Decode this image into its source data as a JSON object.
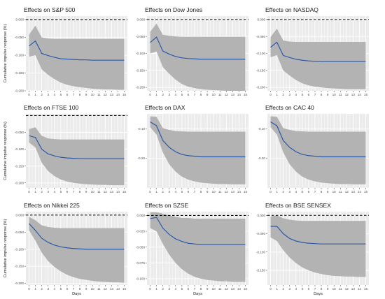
{
  "chart_data": [
    {
      "type": "line",
      "title": "Effects on S&P 500",
      "ylabel": "Cumulative impulse response (%)",
      "xlabel": "",
      "x": [
        0,
        1,
        2,
        3,
        4,
        5,
        6,
        7,
        8,
        9,
        10,
        11,
        12,
        13,
        14,
        15
      ],
      "ylim": [
        -0.2,
        0.01
      ],
      "yticks": [
        0.0,
        -0.05,
        -0.1,
        -0.15,
        -0.2
      ],
      "ytick_labels": [
        "0.000",
        "-0.050",
        "-0.100",
        "-0.150",
        "-0.200"
      ],
      "series": [
        {
          "values": [
            -0.074,
            -0.06,
            -0.095,
            -0.101,
            -0.106,
            -0.11,
            -0.111,
            -0.112,
            -0.113,
            -0.113,
            -0.114,
            -0.114,
            -0.114,
            -0.114,
            -0.114,
            -0.114
          ],
          "lower": [
            -0.104,
            -0.1,
            -0.14,
            -0.155,
            -0.167,
            -0.177,
            -0.183,
            -0.187,
            -0.19,
            -0.192,
            -0.194,
            -0.195,
            -0.196,
            -0.196,
            -0.197,
            -0.197
          ],
          "upper": [
            -0.042,
            -0.017,
            -0.05,
            -0.053,
            -0.054,
            -0.054,
            -0.054,
            -0.054,
            -0.054,
            -0.054,
            -0.054,
            -0.054,
            -0.054,
            -0.054,
            -0.054,
            -0.054
          ]
        }
      ]
    },
    {
      "type": "line",
      "title": "Effects on Dow Jones",
      "ylabel": "",
      "xlabel": "",
      "x": [
        0,
        1,
        2,
        3,
        4,
        5,
        6,
        7,
        8,
        9,
        10,
        11,
        12,
        13,
        14,
        15
      ],
      "ylim": [
        -0.21,
        0.01
      ],
      "yticks": [
        0.0,
        -0.05,
        -0.1,
        -0.15,
        -0.2
      ],
      "ytick_labels": [
        "0.000",
        "-0.050",
        "-0.100",
        "-0.150",
        "-0.200"
      ],
      "series": [
        {
          "values": [
            -0.068,
            -0.052,
            -0.093,
            -0.102,
            -0.109,
            -0.113,
            -0.115,
            -0.116,
            -0.117,
            -0.117,
            -0.117,
            -0.117,
            -0.117,
            -0.117,
            -0.117,
            -0.117
          ],
          "lower": [
            -0.1,
            -0.094,
            -0.14,
            -0.16,
            -0.177,
            -0.19,
            -0.198,
            -0.202,
            -0.205,
            -0.207,
            -0.208,
            -0.209,
            -0.21,
            -0.21,
            -0.21,
            -0.21
          ],
          "upper": [
            -0.036,
            -0.012,
            -0.045,
            -0.048,
            -0.05,
            -0.051,
            -0.051,
            -0.051,
            -0.051,
            -0.051,
            -0.051,
            -0.051,
            -0.051,
            -0.051,
            -0.051,
            -0.051
          ]
        }
      ]
    },
    {
      "type": "line",
      "title": "Effects on NASDAQ",
      "ylabel": "",
      "xlabel": "",
      "x": [
        0,
        1,
        2,
        3,
        4,
        5,
        6,
        7,
        8,
        9,
        10,
        11,
        12,
        13,
        14,
        15
      ],
      "ylim": [
        -0.21,
        0.01
      ],
      "yticks": [
        0.0,
        -0.05,
        -0.1,
        -0.15,
        -0.2
      ],
      "ytick_labels": [
        "0.000",
        "-0.050",
        "-0.100",
        "-0.150",
        "-0.200"
      ],
      "series": [
        {
          "values": [
            -0.082,
            -0.067,
            -0.106,
            -0.112,
            -0.117,
            -0.12,
            -0.122,
            -0.123,
            -0.124,
            -0.124,
            -0.124,
            -0.124,
            -0.124,
            -0.124,
            -0.124,
            -0.124
          ],
          "lower": [
            -0.111,
            -0.105,
            -0.15,
            -0.165,
            -0.178,
            -0.188,
            -0.194,
            -0.198,
            -0.2,
            -0.202,
            -0.203,
            -0.204,
            -0.205,
            -0.205,
            -0.205,
            -0.205
          ],
          "upper": [
            -0.052,
            -0.027,
            -0.062,
            -0.065,
            -0.066,
            -0.066,
            -0.066,
            -0.066,
            -0.066,
            -0.066,
            -0.066,
            -0.066,
            -0.066,
            -0.066,
            -0.066,
            -0.066
          ]
        }
      ]
    },
    {
      "type": "line",
      "title": "Effects on FTSE 100",
      "ylabel": "Cumulative impulse response (%)",
      "xlabel": "",
      "x": [
        0,
        1,
        2,
        3,
        4,
        5,
        6,
        7,
        8,
        9,
        10,
        11,
        12,
        13,
        14,
        15
      ],
      "ylim": [
        -0.215,
        0.005
      ],
      "yticks": [
        -0.05,
        -0.1,
        -0.15,
        -0.2
      ],
      "ytick_labels": [
        "-0.050",
        "-0.100",
        "-0.150",
        "-0.200"
      ],
      "series": [
        {
          "values": [
            -0.06,
            -0.065,
            -0.1,
            -0.114,
            -0.12,
            -0.124,
            -0.126,
            -0.127,
            -0.128,
            -0.128,
            -0.128,
            -0.128,
            -0.128,
            -0.128,
            -0.128,
            -0.128
          ],
          "lower": [
            -0.08,
            -0.095,
            -0.14,
            -0.165,
            -0.18,
            -0.19,
            -0.196,
            -0.2,
            -0.202,
            -0.204,
            -0.205,
            -0.206,
            -0.206,
            -0.207,
            -0.207,
            -0.207
          ],
          "upper": [
            -0.04,
            -0.035,
            -0.06,
            -0.068,
            -0.07,
            -0.071,
            -0.071,
            -0.071,
            -0.071,
            -0.071,
            -0.071,
            -0.071,
            -0.071,
            -0.071,
            -0.071,
            -0.071
          ]
        }
      ]
    },
    {
      "type": "line",
      "title": "Effects on DAX",
      "ylabel": "",
      "xlabel": "",
      "x": [
        0,
        1,
        2,
        3,
        4,
        5,
        6,
        7,
        8,
        9,
        10,
        11,
        12,
        13,
        14,
        15
      ],
      "ylim": [
        -0.3,
        -0.05
      ],
      "yticks": [
        -0.1,
        -0.2
      ],
      "ytick_labels": [
        "-0.10",
        "-0.20"
      ],
      "series": [
        {
          "values": [
            -0.077,
            -0.09,
            -0.14,
            -0.163,
            -0.178,
            -0.187,
            -0.191,
            -0.193,
            -0.195,
            -0.195,
            -0.195,
            -0.195,
            -0.195,
            -0.195,
            -0.195,
            -0.195
          ],
          "lower": [
            -0.095,
            -0.12,
            -0.18,
            -0.22,
            -0.245,
            -0.262,
            -0.272,
            -0.278,
            -0.282,
            -0.284,
            -0.286,
            -0.287,
            -0.287,
            -0.288,
            -0.288,
            -0.288
          ],
          "upper": [
            -0.058,
            -0.06,
            -0.098,
            -0.104,
            -0.108,
            -0.109,
            -0.11,
            -0.11,
            -0.11,
            -0.11,
            -0.11,
            -0.11,
            -0.11,
            -0.11,
            -0.11,
            -0.11
          ]
        }
      ]
    },
    {
      "type": "line",
      "title": "Effects on CAC 40",
      "ylabel": "",
      "xlabel": "",
      "x": [
        0,
        1,
        2,
        3,
        4,
        5,
        6,
        7,
        8,
        9,
        10,
        11,
        12,
        13,
        14,
        15
      ],
      "ylim": [
        -0.3,
        -0.05
      ],
      "yticks": [
        -0.1,
        -0.2
      ],
      "ytick_labels": [
        "-0.10",
        "-0.20"
      ],
      "series": [
        {
          "values": [
            -0.077,
            -0.09,
            -0.14,
            -0.163,
            -0.178,
            -0.187,
            -0.191,
            -0.193,
            -0.195,
            -0.195,
            -0.195,
            -0.195,
            -0.195,
            -0.195,
            -0.195,
            -0.195
          ],
          "lower": [
            -0.095,
            -0.12,
            -0.18,
            -0.22,
            -0.245,
            -0.262,
            -0.272,
            -0.278,
            -0.282,
            -0.284,
            -0.286,
            -0.287,
            -0.287,
            -0.288,
            -0.288,
            -0.288
          ],
          "upper": [
            -0.058,
            -0.06,
            -0.098,
            -0.104,
            -0.108,
            -0.109,
            -0.11,
            -0.11,
            -0.11,
            -0.11,
            -0.11,
            -0.11,
            -0.11,
            -0.11,
            -0.11,
            -0.11
          ]
        }
      ]
    },
    {
      "type": "line",
      "title": "Effects on Nikkei 225",
      "ylabel": "Cumulative impulse response (%)",
      "xlabel": "Days",
      "x": [
        0,
        1,
        2,
        3,
        4,
        5,
        6,
        7,
        8,
        9,
        10,
        11,
        12,
        13,
        14,
        15
      ],
      "ylim": [
        -0.205,
        0.01
      ],
      "yticks": [
        0.0,
        -0.05,
        -0.1,
        -0.15,
        -0.2
      ],
      "ytick_labels": [
        "0.000",
        "-0.050",
        "-0.100",
        "-0.150",
        "-0.200"
      ],
      "series": [
        {
          "values": [
            -0.025,
            -0.045,
            -0.068,
            -0.08,
            -0.088,
            -0.093,
            -0.096,
            -0.098,
            -0.099,
            -0.1,
            -0.1,
            -0.1,
            -0.1,
            -0.1,
            -0.1,
            -0.1
          ],
          "lower": [
            -0.045,
            -0.075,
            -0.11,
            -0.135,
            -0.152,
            -0.165,
            -0.175,
            -0.182,
            -0.187,
            -0.19,
            -0.193,
            -0.195,
            -0.196,
            -0.197,
            -0.197,
            -0.198
          ],
          "upper": [
            -0.005,
            -0.015,
            -0.03,
            -0.035,
            -0.037,
            -0.038,
            -0.038,
            -0.038,
            -0.038,
            -0.038,
            -0.038,
            -0.038,
            -0.038,
            -0.038,
            -0.038,
            -0.038
          ]
        }
      ]
    },
    {
      "type": "line",
      "title": "Effects on SZSE",
      "ylabel": "",
      "xlabel": "Days",
      "x": [
        0,
        1,
        2,
        3,
        4,
        5,
        6,
        7,
        8,
        9,
        10,
        11,
        12,
        13,
        14,
        15
      ],
      "ylim": [
        -0.11,
        0.006
      ],
      "yticks": [
        0.0,
        -0.025,
        -0.05,
        -0.075,
        -0.1
      ],
      "ytick_labels": [
        "0.000",
        "-0.025",
        "-0.050",
        "-0.075",
        "-0.100"
      ],
      "series": [
        {
          "values": [
            -0.005,
            -0.003,
            -0.02,
            -0.03,
            -0.037,
            -0.041,
            -0.044,
            -0.045,
            -0.046,
            -0.046,
            -0.046,
            -0.046,
            -0.046,
            -0.046,
            -0.046,
            -0.046
          ],
          "lower": [
            -0.02,
            -0.025,
            -0.045,
            -0.062,
            -0.075,
            -0.085,
            -0.092,
            -0.097,
            -0.1,
            -0.102,
            -0.103,
            -0.104,
            -0.104,
            -0.105,
            -0.105,
            -0.105
          ],
          "upper": [
            0.005,
            0.005,
            0.003,
            0.0,
            -0.002,
            -0.004,
            -0.004,
            -0.005,
            -0.005,
            -0.005,
            -0.005,
            -0.005,
            -0.005,
            -0.005,
            -0.005,
            -0.005
          ]
        }
      ]
    },
    {
      "type": "line",
      "title": "Effects on BSE SENSEX",
      "ylabel": "",
      "xlabel": "Days",
      "x": [
        0,
        1,
        2,
        3,
        4,
        5,
        6,
        7,
        8,
        9,
        10,
        11,
        12,
        13,
        14,
        15
      ],
      "ylim": [
        -0.19,
        0.01
      ],
      "yticks": [
        0.0,
        -0.05,
        -0.1,
        -0.15
      ],
      "ytick_labels": [
        "0.000",
        "-0.050",
        "-0.100",
        "-0.150"
      ],
      "series": [
        {
          "values": [
            -0.03,
            -0.03,
            -0.05,
            -0.063,
            -0.07,
            -0.074,
            -0.076,
            -0.077,
            -0.078,
            -0.078,
            -0.078,
            -0.078,
            -0.078,
            -0.078,
            -0.078,
            -0.078
          ],
          "lower": [
            -0.06,
            -0.07,
            -0.095,
            -0.115,
            -0.13,
            -0.142,
            -0.15,
            -0.156,
            -0.16,
            -0.163,
            -0.165,
            -0.166,
            -0.167,
            -0.167,
            -0.168,
            -0.168
          ],
          "upper": [
            -0.003,
            0.0,
            -0.008,
            -0.012,
            -0.014,
            -0.015,
            -0.015,
            -0.015,
            -0.015,
            -0.015,
            -0.015,
            -0.015,
            -0.015,
            -0.015,
            -0.015,
            -0.015
          ]
        }
      ]
    }
  ],
  "colors": {
    "panel_bg": "#ebebeb",
    "grid": "#ffffff",
    "band": "#b3b3b3",
    "line": "#2b5aa8",
    "zero_line": "#000000"
  }
}
